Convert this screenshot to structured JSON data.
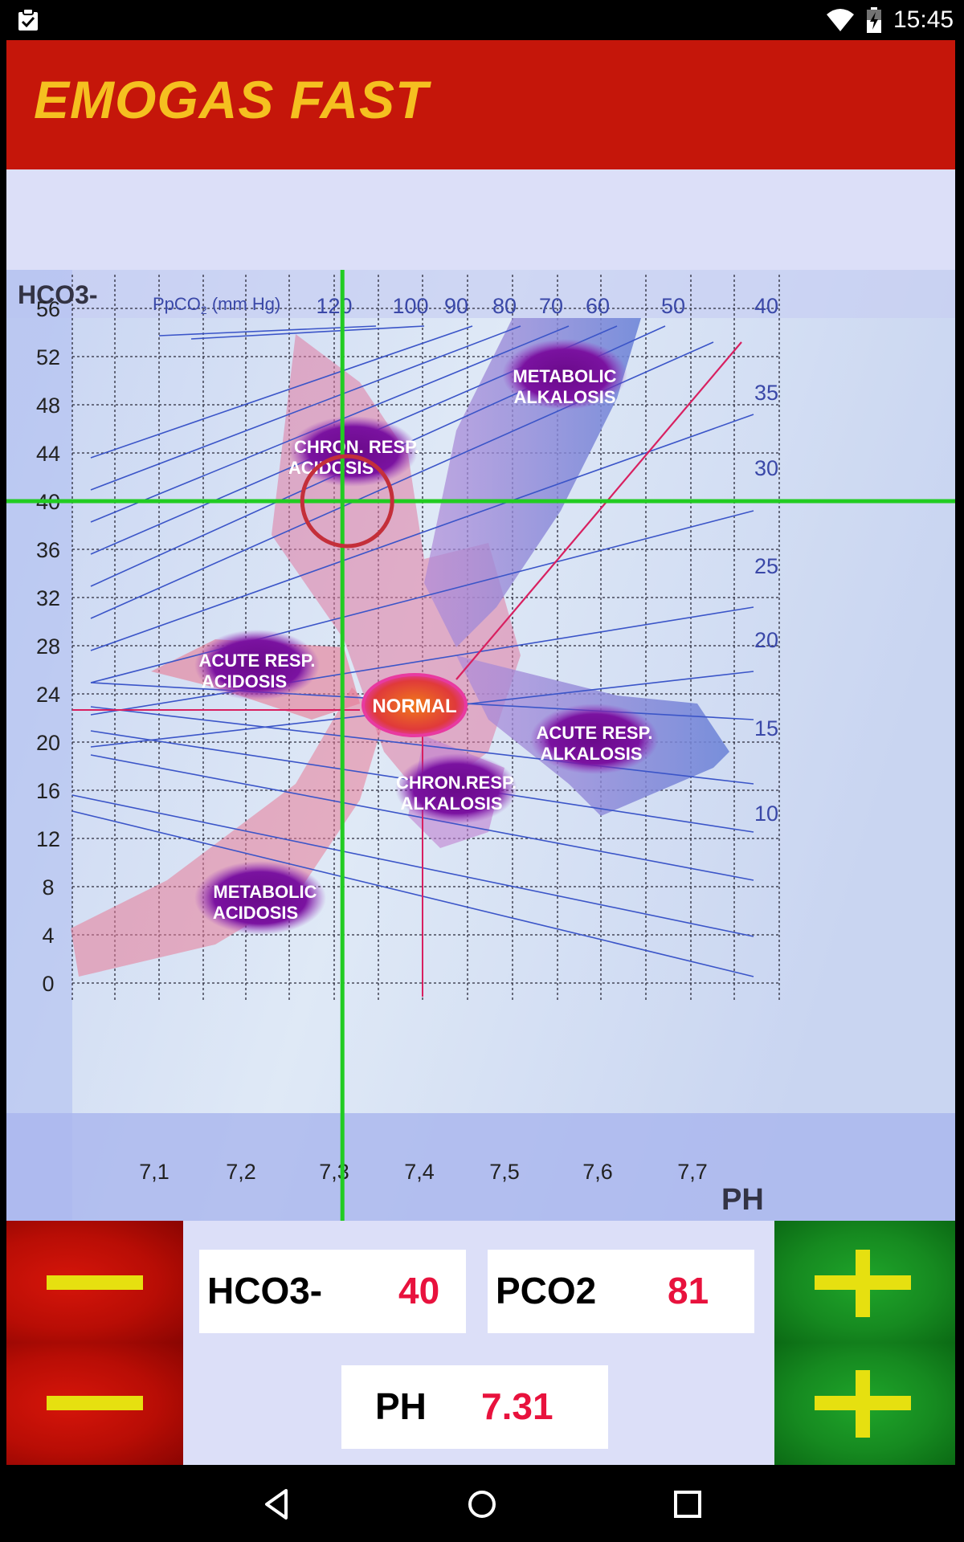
{
  "status_bar": {
    "time": "15:45"
  },
  "app": {
    "title": "EMOGAS FAST"
  },
  "chart": {
    "y_axis_title": "HCO3-",
    "pco2_title": "PpCO",
    "pco2_sub": "2",
    "pco2_unit": " (mm Hg)",
    "x_axis_title": "PH",
    "y_ticks": [
      "56",
      "52",
      "48",
      "44",
      "40",
      "36",
      "32",
      "28",
      "24",
      "20",
      "16",
      "12",
      "8",
      "4",
      "0"
    ],
    "x_ticks": [
      "7,1",
      "7,2",
      "7,3",
      "7,4",
      "7,5",
      "7,6",
      "7,7"
    ],
    "pco2_top_ticks": [
      "120",
      "100",
      "90",
      "80",
      "70",
      "60",
      "50",
      "40"
    ],
    "pco2_right_ticks": [
      "35",
      "30",
      "25",
      "20",
      "15",
      "10"
    ],
    "regions": {
      "metabolic_alkalosis": [
        "METABOLIC",
        "ALKALOSIS"
      ],
      "chron_resp_acidosis": [
        "CHRON. RESP.",
        "ACIDOSIS"
      ],
      "acute_resp_acidosis": [
        "ACUTE RESP.",
        "ACIDOSIS"
      ],
      "normal": "NORMAL",
      "acute_resp_alkalosis": [
        "ACUTE RESP.",
        "ALKALOSIS"
      ],
      "chron_resp_alkalosis": [
        "CHRON.RESP.",
        "ALKALOSIS"
      ],
      "metabolic_acidosis": [
        "METABOLIC",
        "ACIDOSIS"
      ]
    },
    "cursor": {
      "ph": 7.31,
      "hco3": 40
    }
  },
  "controls": {
    "hco3": {
      "label": "HCO3-",
      "value": "40"
    },
    "pco2": {
      "label": "PCO2",
      "value": "81"
    },
    "ph": {
      "label": "PH",
      "value": "7.31"
    }
  },
  "colors": {
    "app_bar": "#c5160a",
    "title": "#f5c020",
    "crosshair": "#22cc22",
    "value_text": "#e8123d",
    "minus_button": "#c5160a",
    "plus_button": "#189a24",
    "button_symbol": "#e6e010"
  }
}
